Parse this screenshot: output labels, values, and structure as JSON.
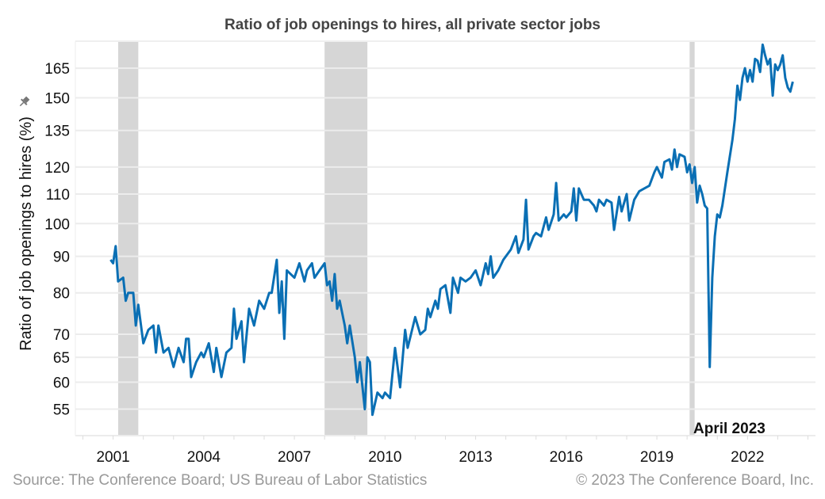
{
  "chart_data": {
    "type": "line",
    "title": "Ratio of job openings to hires, all private sector jobs",
    "ylabel": "Ratio of job openings to hires (%)",
    "xlabel": "",
    "y_scale": "log",
    "ylim": [
      50.5,
      180
    ],
    "xlim": [
      "1999-10",
      "2024-04"
    ],
    "y_ticks": [
      55,
      60,
      65,
      70,
      80,
      90,
      100,
      110,
      120,
      135,
      150,
      165
    ],
    "x_ticks": [
      "2001",
      "2004",
      "2007",
      "2010",
      "2013",
      "2016",
      "2019",
      "2022"
    ],
    "grid": true,
    "line_color": "#0a6fb4",
    "recession_color": "#d6d6d6",
    "recessions": [
      [
        "2001-03",
        "2001-11"
      ],
      [
        "2008-01",
        "2009-06"
      ],
      [
        "2020-02",
        "2020-04"
      ]
    ],
    "annotation": "April 2023",
    "series": [
      {
        "points": [
          [
            "2000-12",
            89
          ],
          [
            "2001-01",
            88
          ],
          [
            "2001-02",
            93
          ],
          [
            "2001-03",
            83
          ],
          [
            "2001-05",
            84
          ],
          [
            "2001-06",
            78
          ],
          [
            "2001-07",
            80
          ],
          [
            "2001-09",
            80
          ],
          [
            "2001-10",
            72
          ],
          [
            "2001-11",
            77
          ],
          [
            "2002-01",
            68
          ],
          [
            "2002-03",
            71
          ],
          [
            "2002-05",
            72
          ],
          [
            "2002-06",
            66
          ],
          [
            "2002-07",
            72
          ],
          [
            "2002-09",
            66
          ],
          [
            "2002-11",
            67
          ],
          [
            "2003-01",
            63
          ],
          [
            "2003-03",
            67
          ],
          [
            "2003-05",
            64
          ],
          [
            "2003-06",
            69
          ],
          [
            "2003-07",
            69
          ],
          [
            "2003-08",
            61
          ],
          [
            "2003-10",
            64
          ],
          [
            "2003-12",
            66
          ],
          [
            "2004-01",
            65
          ],
          [
            "2004-03",
            68
          ],
          [
            "2004-05",
            62
          ],
          [
            "2004-06",
            67
          ],
          [
            "2004-08",
            61
          ],
          [
            "2004-10",
            66
          ],
          [
            "2004-12",
            67
          ],
          [
            "2005-01",
            76
          ],
          [
            "2005-02",
            69
          ],
          [
            "2005-04",
            73
          ],
          [
            "2005-05",
            64
          ],
          [
            "2005-07",
            76
          ],
          [
            "2005-09",
            72
          ],
          [
            "2005-11",
            78
          ],
          [
            "2006-01",
            76
          ],
          [
            "2006-03",
            80
          ],
          [
            "2006-04",
            80
          ],
          [
            "2006-06",
            89
          ],
          [
            "2006-07",
            75
          ],
          [
            "2006-08",
            83
          ],
          [
            "2006-09",
            69
          ],
          [
            "2006-10",
            86
          ],
          [
            "2007-01",
            84
          ],
          [
            "2007-03",
            88
          ],
          [
            "2007-05",
            83
          ],
          [
            "2007-06",
            86
          ],
          [
            "2007-08",
            88
          ],
          [
            "2007-09",
            84
          ],
          [
            "2007-11",
            86
          ],
          [
            "2008-01",
            88
          ],
          [
            "2008-02",
            82
          ],
          [
            "2008-03",
            83
          ],
          [
            "2008-04",
            78
          ],
          [
            "2008-05",
            85
          ],
          [
            "2008-06",
            76
          ],
          [
            "2008-07",
            78
          ],
          [
            "2008-09",
            72
          ],
          [
            "2008-10",
            68
          ],
          [
            "2008-11",
            72
          ],
          [
            "2009-01",
            65
          ],
          [
            "2009-02",
            60
          ],
          [
            "2009-03",
            64
          ],
          [
            "2009-05",
            55
          ],
          [
            "2009-06",
            65
          ],
          [
            "2009-07",
            64
          ],
          [
            "2009-08",
            54
          ],
          [
            "2009-10",
            58
          ],
          [
            "2009-12",
            57
          ],
          [
            "2010-01",
            58
          ],
          [
            "2010-03",
            57
          ],
          [
            "2010-05",
            67
          ],
          [
            "2010-06",
            63
          ],
          [
            "2010-07",
            59
          ],
          [
            "2010-09",
            71
          ],
          [
            "2010-10",
            67
          ],
          [
            "2011-01",
            74
          ],
          [
            "2011-03",
            70
          ],
          [
            "2011-05",
            71
          ],
          [
            "2011-06",
            76
          ],
          [
            "2011-07",
            74
          ],
          [
            "2011-09",
            78
          ],
          [
            "2011-10",
            76
          ],
          [
            "2011-11",
            81
          ],
          [
            "2012-01",
            82
          ],
          [
            "2012-03",
            75
          ],
          [
            "2012-04",
            84
          ],
          [
            "2012-06",
            80
          ],
          [
            "2012-07",
            84
          ],
          [
            "2012-09",
            83
          ],
          [
            "2012-11",
            84
          ],
          [
            "2013-01",
            86
          ],
          [
            "2013-03",
            82
          ],
          [
            "2013-05",
            88
          ],
          [
            "2013-06",
            85
          ],
          [
            "2013-07",
            90
          ],
          [
            "2013-08",
            84
          ],
          [
            "2013-10",
            86
          ],
          [
            "2013-12",
            89
          ],
          [
            "2014-01",
            90
          ],
          [
            "2014-03",
            92
          ],
          [
            "2014-05",
            96
          ],
          [
            "2014-06",
            91
          ],
          [
            "2014-08",
            95
          ],
          [
            "2014-09",
            108
          ],
          [
            "2014-10",
            92
          ],
          [
            "2014-12",
            96
          ],
          [
            "2015-01",
            97
          ],
          [
            "2015-03",
            96
          ],
          [
            "2015-05",
            102
          ],
          [
            "2015-06",
            98
          ],
          [
            "2015-08",
            103
          ],
          [
            "2015-09",
            114
          ],
          [
            "2015-10",
            101
          ],
          [
            "2015-12",
            103
          ],
          [
            "2016-01",
            102
          ],
          [
            "2016-03",
            104
          ],
          [
            "2016-04",
            112
          ],
          [
            "2016-05",
            101
          ],
          [
            "2016-06",
            112
          ],
          [
            "2016-08",
            108
          ],
          [
            "2016-10",
            108
          ],
          [
            "2016-12",
            106
          ],
          [
            "2017-01",
            104
          ],
          [
            "2017-02",
            108
          ],
          [
            "2017-04",
            106
          ],
          [
            "2017-05",
            108
          ],
          [
            "2017-07",
            107
          ],
          [
            "2017-08",
            98
          ],
          [
            "2017-10",
            109
          ],
          [
            "2017-11",
            104
          ],
          [
            "2018-01",
            110
          ],
          [
            "2018-02",
            101
          ],
          [
            "2018-04",
            108
          ],
          [
            "2018-06",
            111
          ],
          [
            "2018-08",
            112
          ],
          [
            "2018-10",
            113
          ],
          [
            "2018-12",
            118
          ],
          [
            "2019-01",
            120
          ],
          [
            "2019-03",
            116
          ],
          [
            "2019-04",
            122
          ],
          [
            "2019-06",
            123
          ],
          [
            "2019-07",
            119
          ],
          [
            "2019-08",
            127
          ],
          [
            "2019-09",
            120
          ],
          [
            "2019-10",
            125
          ],
          [
            "2019-12",
            124
          ],
          [
            "2020-01",
            118
          ],
          [
            "2020-02",
            121
          ],
          [
            "2020-03",
            114
          ],
          [
            "2020-04",
            120
          ],
          [
            "2020-05",
            107
          ],
          [
            "2020-06",
            113
          ],
          [
            "2020-07",
            110
          ],
          [
            "2020-08",
            106
          ],
          [
            "2020-09",
            105
          ],
          [
            "2020-10",
            63
          ],
          [
            "2020-11",
            84
          ],
          [
            "2020-12",
            96
          ],
          [
            "2021-01",
            103
          ],
          [
            "2021-02",
            102
          ],
          [
            "2021-03",
            106
          ],
          [
            "2021-05",
            118
          ],
          [
            "2021-07",
            131
          ],
          [
            "2021-08",
            140
          ],
          [
            "2021-09",
            156
          ],
          [
            "2021-10",
            149
          ],
          [
            "2021-11",
            160
          ],
          [
            "2021-12",
            165
          ],
          [
            "2022-01",
            158
          ],
          [
            "2022-02",
            164
          ],
          [
            "2022-03",
            158
          ],
          [
            "2022-04",
            170
          ],
          [
            "2022-05",
            169
          ],
          [
            "2022-06",
            163
          ],
          [
            "2022-07",
            178
          ],
          [
            "2022-08",
            172
          ],
          [
            "2022-09",
            167
          ],
          [
            "2022-10",
            170
          ],
          [
            "2022-11",
            151
          ],
          [
            "2022-12",
            167
          ],
          [
            "2023-01",
            164
          ],
          [
            "2023-02",
            167
          ],
          [
            "2023-03",
            172
          ],
          [
            "2023-04",
            160
          ],
          [
            "2023-05",
            155
          ],
          [
            "2023-06",
            153
          ],
          [
            "2023-07",
            158
          ]
        ]
      }
    ]
  },
  "footer": {
    "source": "Source: The Conference Board; US Bureau of Labor Statistics",
    "copyright": "© 2023 The Conference Board, Inc."
  },
  "icons": {
    "ylabel_pin": "pin-icon"
  }
}
